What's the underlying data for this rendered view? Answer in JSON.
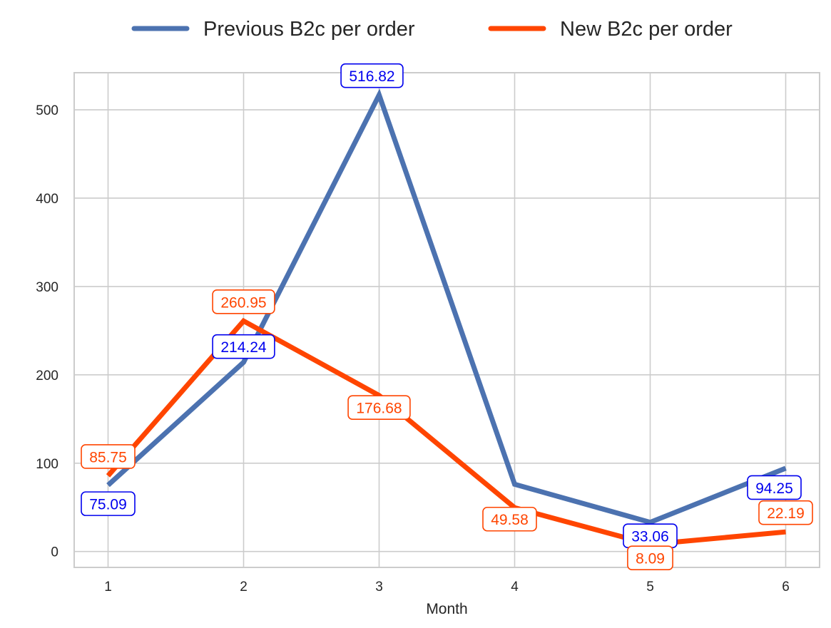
{
  "chart_data": {
    "type": "line",
    "title": "",
    "xlabel": "Month",
    "ylabel": "",
    "x": [
      1,
      2,
      3,
      4,
      5,
      6
    ],
    "xlim": [
      0.75,
      6.25
    ],
    "ylim": [
      -18,
      542
    ],
    "yticks": [
      0,
      100,
      200,
      300,
      400,
      500
    ],
    "grid": true,
    "legend_position": "top-center",
    "series": [
      {
        "name": "Previous B2c per order",
        "color": "#4c72b0",
        "label_color": "#0000ee",
        "values": [
          75.09,
          214.24,
          516.82,
          76.13,
          33.06,
          94.25
        ],
        "labels": [
          "75.09",
          "214.24",
          "516.82",
          "",
          "33.06",
          "94.25"
        ]
      },
      {
        "name": "New B2c per order",
        "color": "#ff4500",
        "label_color": "#ff4500",
        "values": [
          85.75,
          260.95,
          176.68,
          49.58,
          8.09,
          22.19
        ],
        "labels": [
          "85.75",
          "260.95",
          "176.68",
          "49.58",
          "8.09",
          "22.19"
        ]
      }
    ]
  }
}
